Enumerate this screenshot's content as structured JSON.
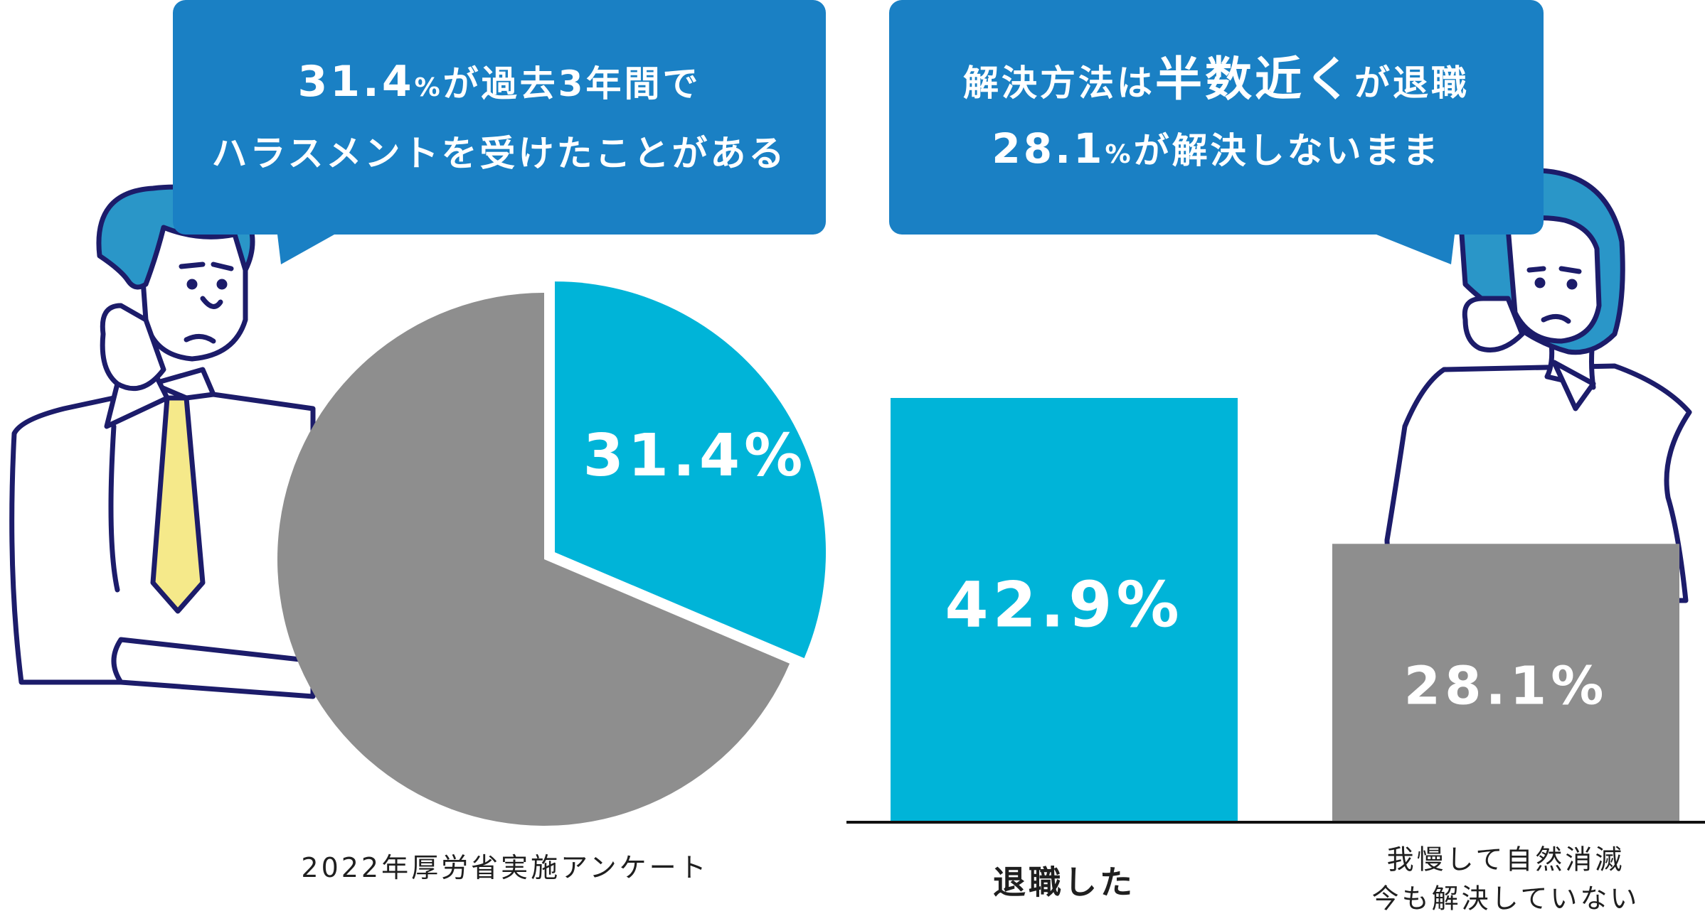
{
  "bubble_left": {
    "line1_a": "31.4",
    "line1_b": "%",
    "line1_c": "が過去3年間で",
    "line2": "ハラスメントを受けたことがある"
  },
  "bubble_right": {
    "line1_a": "解決方法は",
    "line1_b": "半数近く",
    "line1_c": "が退職",
    "line2_a": "28.1",
    "line2_b": "%",
    "line2_c": "が解決しないまま"
  },
  "colors": {
    "accent_cyan": "#00b4d8",
    "neutral_gray": "#8e8e8e",
    "bubble_blue": "#1a80c4",
    "outline_navy": "#1c1c6a",
    "tie_yellow": "#f5e98a"
  },
  "chart_data": [
    {
      "type": "pie",
      "labels": [
        "",
        ""
      ],
      "values": [
        31.4,
        68.6
      ],
      "slice_labels": [
        "31.4%",
        ""
      ],
      "colors": [
        "#00b4d8",
        "#8e8e8e"
      ],
      "caption": "2022年厚労省実施アンケート"
    },
    {
      "type": "bar",
      "categories": [
        "退職した",
        "我慢して自然消滅\n今も解決していない"
      ],
      "category_lines": [
        [
          "退職した"
        ],
        [
          "我慢して自然消滅",
          "今も解決していない"
        ]
      ],
      "values": [
        42.9,
        28.1
      ],
      "value_labels": [
        "42.9%",
        "28.1%"
      ],
      "colors": [
        "#00b4d8",
        "#8e8e8e"
      ],
      "ylim": [
        0,
        45
      ]
    }
  ]
}
